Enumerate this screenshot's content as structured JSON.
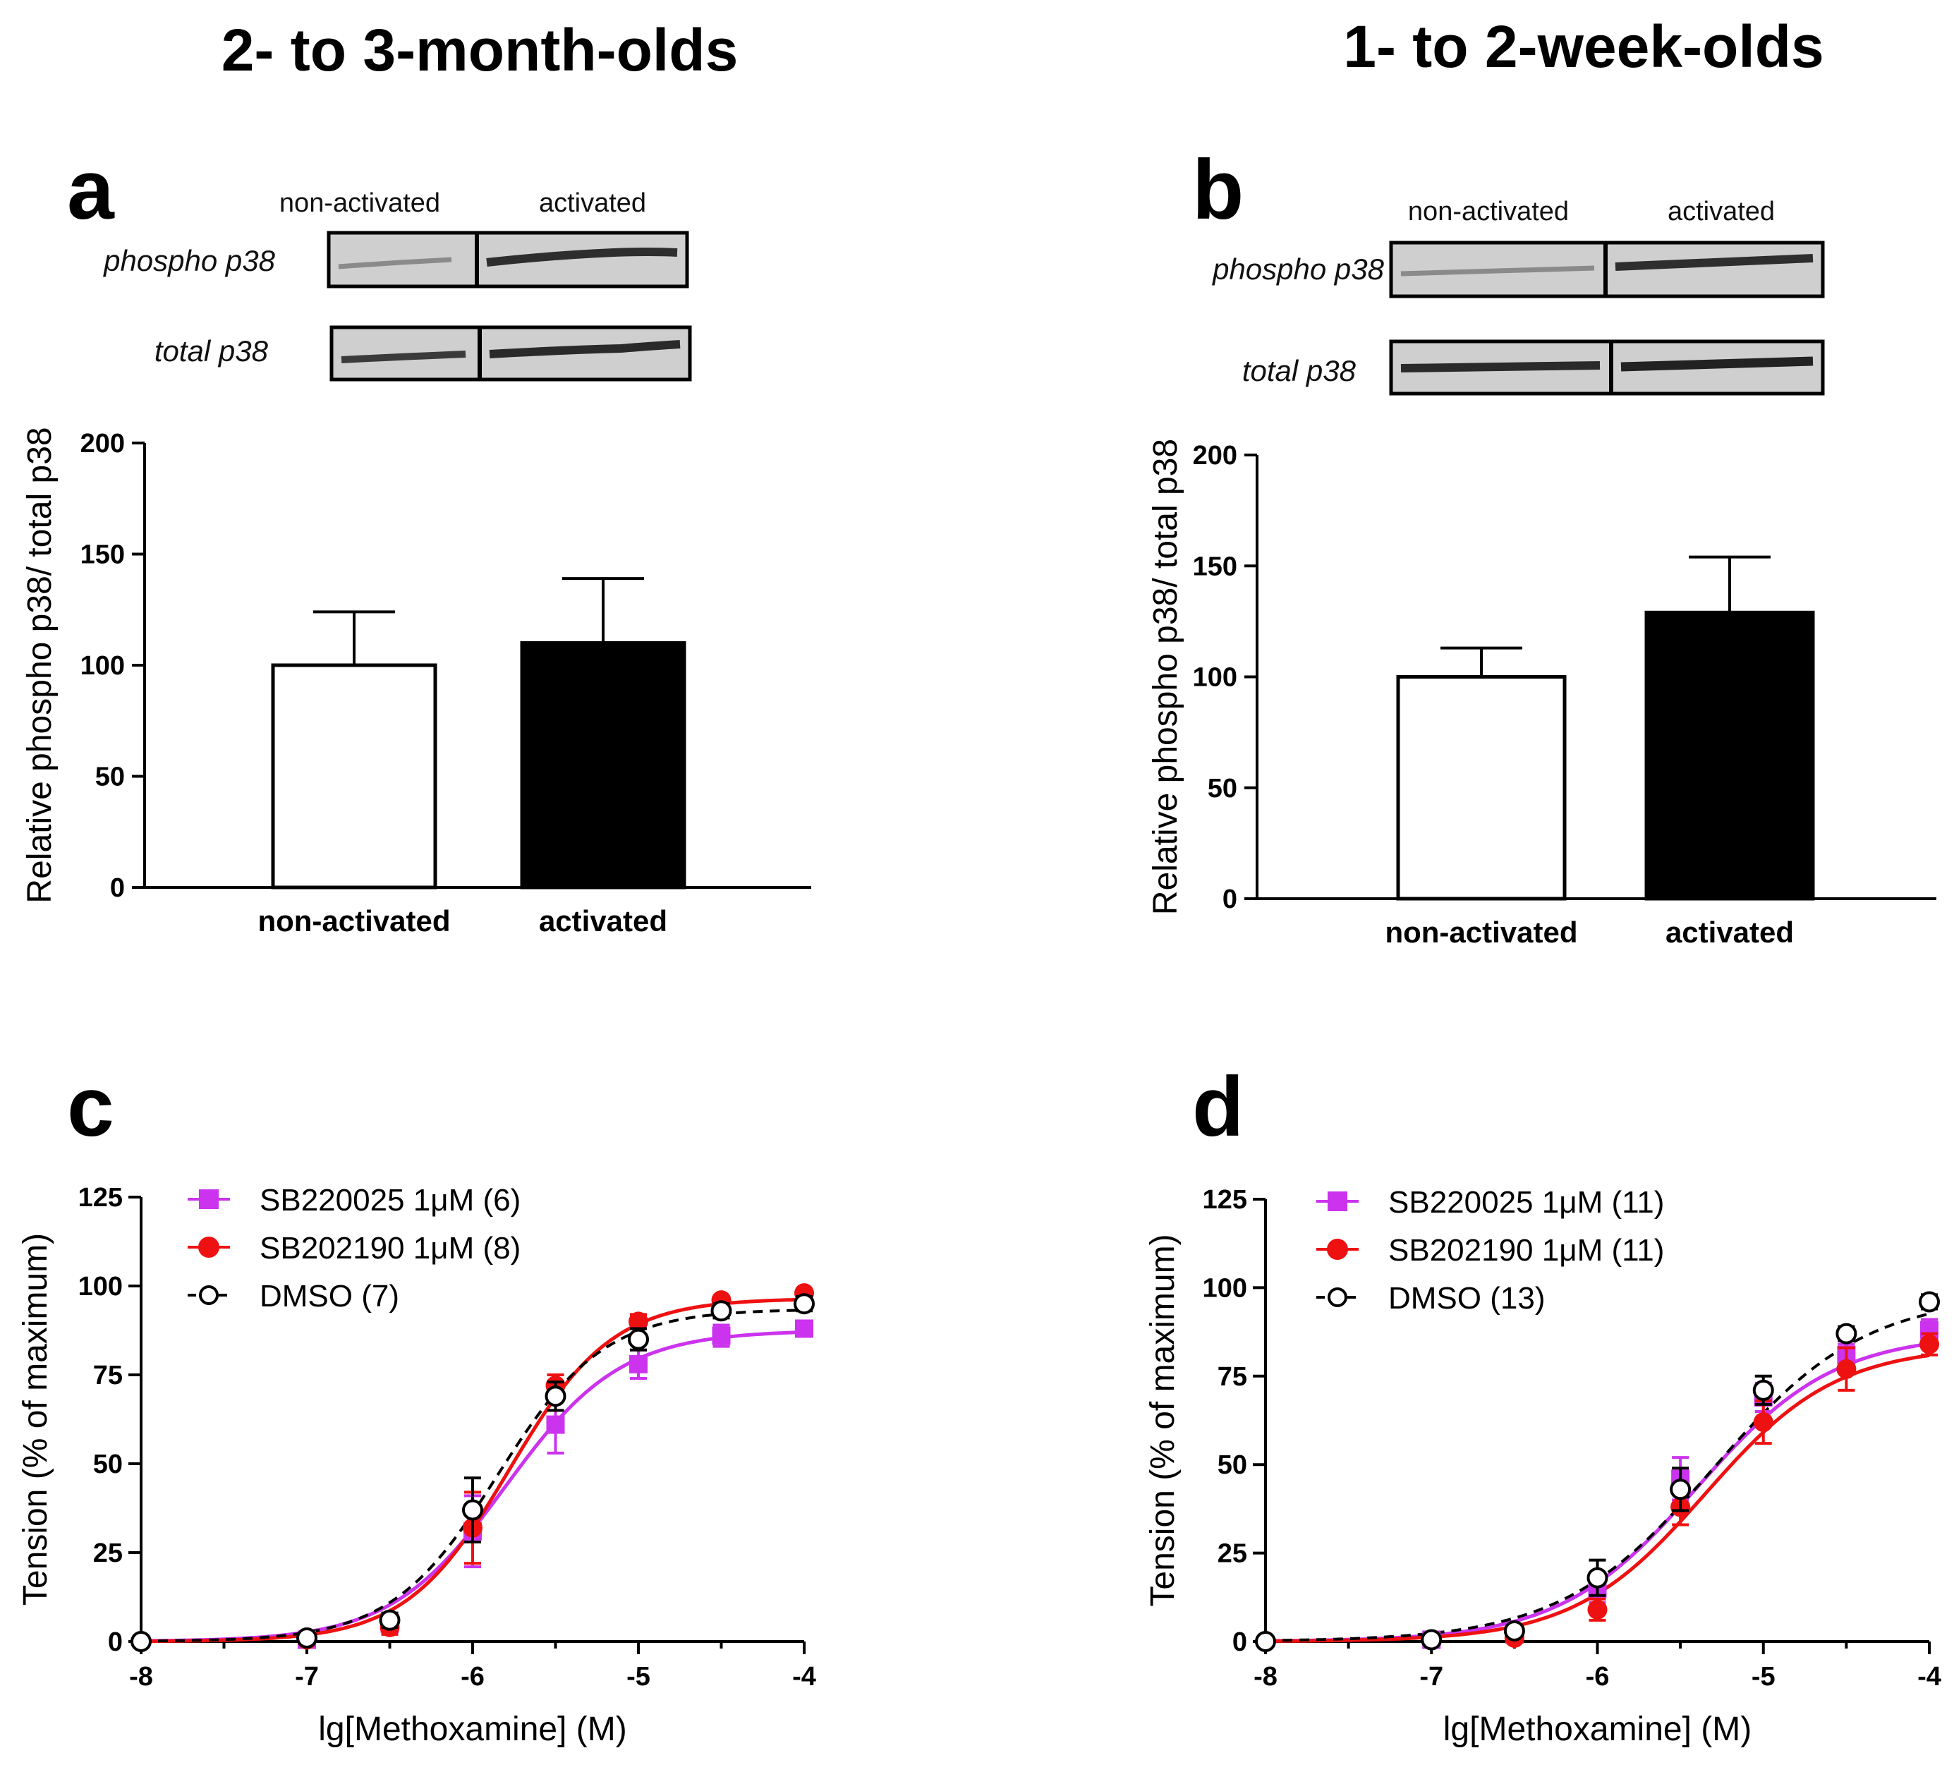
{
  "titles": {
    "left": "2- to 3-month-olds",
    "right": "1- to 2-week-olds"
  },
  "colors": {
    "black": "#000000",
    "white": "#ffffff",
    "magenta": "#cc33ee",
    "red": "#ee1111"
  },
  "panels": {
    "a": {
      "letter": "a",
      "lane_labels": {
        "non_activated": "non-activated",
        "activated": "activated"
      },
      "blot_labels": {
        "phospho": "phospho p38",
        "total": "total p38"
      }
    },
    "b": {
      "letter": "b",
      "lane_labels": {
        "non_activated": "non-activated",
        "activated": "activated"
      },
      "blot_labels": {
        "phospho": "phospho p38",
        "total": "total p38"
      }
    },
    "c": {
      "letter": "c"
    },
    "d": {
      "letter": "d"
    }
  },
  "chart_data": [
    {
      "id": "a",
      "type": "bar",
      "title": "",
      "ylabel": "Relative phospho p38/ total p38",
      "xlabel": "",
      "ylim": [
        0,
        200
      ],
      "yticks": [
        0,
        50,
        100,
        150,
        200
      ],
      "categories": [
        "non-activated",
        "activated"
      ],
      "values": [
        100,
        110
      ],
      "errors": [
        24,
        29
      ],
      "fills": [
        "white",
        "black"
      ]
    },
    {
      "id": "b",
      "type": "bar",
      "title": "",
      "ylabel": "Relative phospho p38/ total p38",
      "xlabel": "",
      "ylim": [
        0,
        200
      ],
      "yticks": [
        0,
        50,
        100,
        150,
        200
      ],
      "categories": [
        "non-activated",
        "activated"
      ],
      "values": [
        100,
        129
      ],
      "errors": [
        13,
        25
      ],
      "fills": [
        "white",
        "black"
      ]
    },
    {
      "id": "c",
      "type": "scatter",
      "title": "",
      "xlabel": "lg[Methoxamine] (M)",
      "ylabel": "Tension (% of maximum)",
      "xlim": [
        -8,
        -4
      ],
      "ylim": [
        0,
        125
      ],
      "xticks": [
        -8,
        -7,
        -6,
        -5,
        -4
      ],
      "yticks": [
        0,
        25,
        50,
        75,
        100,
        125
      ],
      "series": [
        {
          "name": "SB220025 1μM (6)",
          "marker": "square",
          "color": "#cc33ee",
          "dashed": false,
          "x": [
            -7,
            -6.5,
            -6,
            -5.5,
            -5,
            -4.5,
            -4
          ],
          "y": [
            0.5,
            5,
            31,
            61,
            78,
            86,
            88
          ],
          "err": [
            1,
            2,
            10,
            8,
            4,
            3,
            2
          ],
          "fit": {
            "bottom": 0,
            "top": 87.5,
            "logec50": -5.8,
            "hill": 1.25
          }
        },
        {
          "name": "SB202190 1μM (8)",
          "marker": "circle",
          "color": "#ee1111",
          "dashed": false,
          "x": [
            -7,
            -6.5,
            -6,
            -5.5,
            -5,
            -4.5,
            -4
          ],
          "y": [
            0.5,
            4,
            32,
            72,
            90,
            96,
            98
          ],
          "err": [
            1,
            2,
            10,
            3,
            2,
            1,
            1
          ],
          "fit": {
            "bottom": 0,
            "top": 96.5,
            "logec50": -5.78,
            "hill": 1.4
          }
        },
        {
          "name": "DMSO (7)",
          "marker": "open-circle",
          "color": "#000000",
          "dashed": true,
          "x": [
            -8,
            -7,
            -6.5,
            -6,
            -5.5,
            -5,
            -4.5,
            -4
          ],
          "y": [
            0,
            1,
            6,
            37,
            69,
            85,
            93,
            95
          ],
          "err": [
            0,
            1,
            2,
            9,
            4,
            3,
            2,
            2
          ],
          "fit": {
            "bottom": 0,
            "top": 93.5,
            "logec50": -5.85,
            "hill": 1.35
          }
        }
      ]
    },
    {
      "id": "d",
      "type": "scatter",
      "title": "",
      "xlabel": "lg[Methoxamine] (M)",
      "ylabel": "Tension (% of maximum)",
      "xlim": [
        -8,
        -4
      ],
      "ylim": [
        0,
        125
      ],
      "xticks": [
        -8,
        -7,
        -6,
        -5,
        -4
      ],
      "yticks": [
        0,
        25,
        50,
        75,
        100,
        125
      ],
      "series": [
        {
          "name": "SB220025 1μM (11)",
          "marker": "square",
          "color": "#cc33ee",
          "dashed": false,
          "x": [
            -7,
            -6.5,
            -6,
            -5.5,
            -5,
            -4.5,
            -4
          ],
          "y": [
            0.5,
            2,
            15,
            46,
            69,
            81,
            88
          ],
          "err": [
            1,
            1,
            4,
            6,
            4,
            3,
            3
          ],
          "fit": {
            "bottom": 0,
            "top": 87,
            "logec50": -5.4,
            "hill": 1.05
          }
        },
        {
          "name": "SB202190 1μM (11)",
          "marker": "circle",
          "color": "#ee1111",
          "dashed": false,
          "x": [
            -7,
            -6.5,
            -6,
            -5.5,
            -5,
            -4.5,
            -4
          ],
          "y": [
            0.5,
            1,
            9,
            38,
            62,
            77,
            84
          ],
          "err": [
            1,
            1,
            3,
            5,
            6,
            6,
            3
          ],
          "fit": {
            "bottom": 0,
            "top": 83.5,
            "logec50": -5.35,
            "hill": 1.1
          }
        },
        {
          "name": "DMSO (13)",
          "marker": "open-circle",
          "color": "#000000",
          "dashed": true,
          "x": [
            -8,
            -7,
            -6.5,
            -6,
            -5.5,
            -5,
            -4.5,
            -4
          ],
          "y": [
            0,
            0.5,
            3,
            18,
            43,
            71,
            87,
            96
          ],
          "err": [
            0,
            1,
            1,
            5,
            6,
            4,
            2,
            2
          ],
          "fit": {
            "bottom": 0,
            "top": 98,
            "logec50": -5.3,
            "hill": 0.95
          }
        }
      ]
    }
  ]
}
